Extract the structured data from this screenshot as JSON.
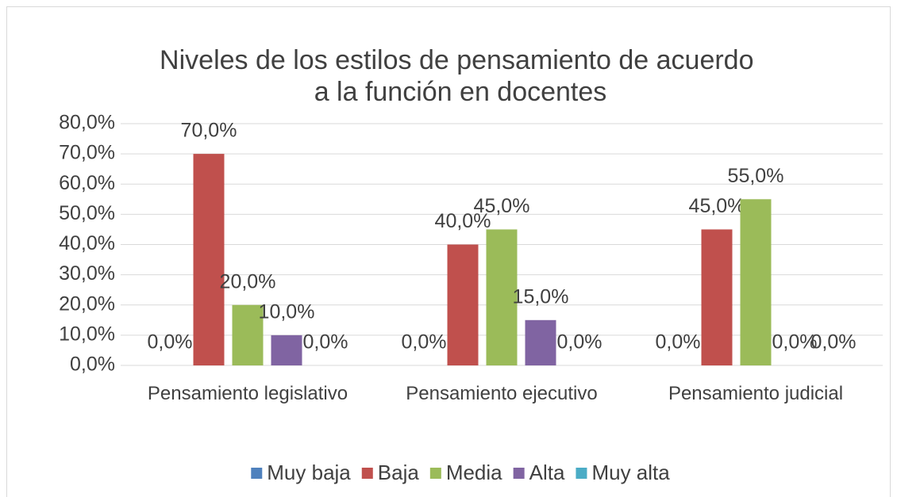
{
  "chart_data": {
    "type": "bar",
    "title": "Niveles de los estilos de pensamiento de acuerdo a la función en docentes",
    "categories": [
      "Pensamiento legislativo",
      "Pensamiento ejecutivo",
      "Pensamiento judicial"
    ],
    "series": [
      {
        "name": "Muy baja",
        "color": "#4f81bd",
        "values": [
          0,
          0,
          0
        ],
        "value_labels": [
          "0,0%",
          "0,0%",
          "0,0%"
        ]
      },
      {
        "name": "Baja",
        "color": "#c0504d",
        "values": [
          70,
          40,
          45
        ],
        "value_labels": [
          "70,0%",
          "40,0%",
          "45,0%"
        ]
      },
      {
        "name": "Media",
        "color": "#9bbb59",
        "values": [
          20,
          45,
          55
        ],
        "value_labels": [
          "20,0%",
          "45,0%",
          "55,0%"
        ]
      },
      {
        "name": "Alta",
        "color": "#8064a2",
        "values": [
          10,
          15,
          0
        ],
        "value_labels": [
          "10,0%",
          "15,0%",
          "0,0%"
        ]
      },
      {
        "name": "Muy alta",
        "color": "#4bacc6",
        "values": [
          0,
          0,
          0
        ],
        "value_labels": [
          "0,0%",
          "0,0%",
          "0,0%"
        ]
      }
    ],
    "ylim": [
      0,
      80
    ],
    "yticks": [
      {
        "value": 0,
        "label": "0,0%"
      },
      {
        "value": 10,
        "label": "10,0%"
      },
      {
        "value": 20,
        "label": "20,0%"
      },
      {
        "value": 30,
        "label": "30,0%"
      },
      {
        "value": 40,
        "label": "40,0%"
      },
      {
        "value": 50,
        "label": "50,0%"
      },
      {
        "value": 60,
        "label": "60,0%"
      },
      {
        "value": 70,
        "label": "70,0%"
      },
      {
        "value": 80,
        "label": "80,0%"
      }
    ],
    "grid": true,
    "legend": "bottom"
  }
}
